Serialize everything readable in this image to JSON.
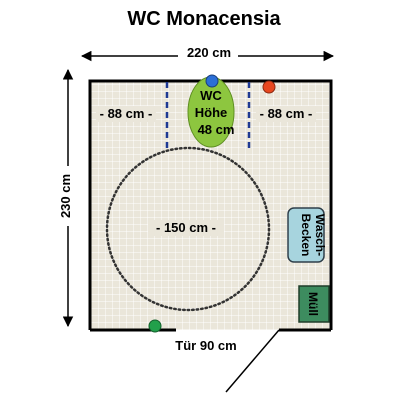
{
  "title": "WC Monacensia",
  "dimensions": {
    "width": "220 cm",
    "height": "230 cm",
    "left_clearance": "- 88 cm -",
    "right_clearance": "- 88 cm -",
    "turning_circle": "- 150 cm -",
    "door": "Tür 90 cm"
  },
  "toilet": {
    "line1": "WC",
    "line2": "Höhe",
    "line3": "48 cm"
  },
  "sink": {
    "line1": "Wasch-",
    "line2": "Becken"
  },
  "bin": {
    "label": "Müll"
  },
  "colors": {
    "floor": "#eae6da",
    "toilet": "#8dc63f",
    "sink": "#a7d4de",
    "bin": "#3d8c5f",
    "grab_bar_dashes": "#1f3a93",
    "dot_blue": "#2b6fd6",
    "dot_red": "#e8471f",
    "dot_green": "#22a04b"
  }
}
